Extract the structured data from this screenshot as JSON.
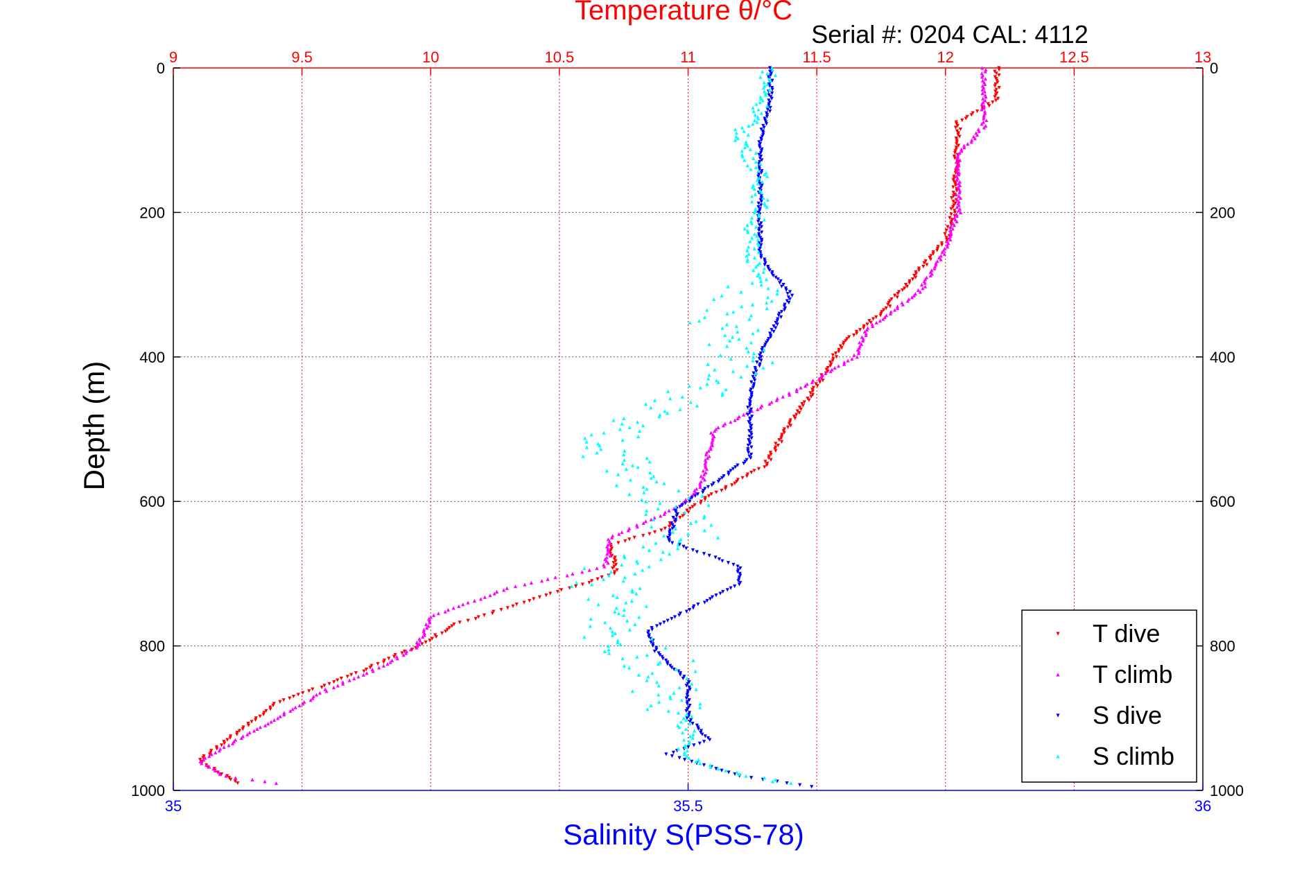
{
  "chart_data": {
    "type": "scatter",
    "title": "Temperature θ/°C",
    "subtitle": "Serial #: 0204  CAL: 4112",
    "ylabel": "Depth (m)",
    "xlabel_top": "Temperature θ/°C",
    "xlabel_bottom": "Salinity S(PSS-78)",
    "y_reversed": true,
    "ylim": [
      0,
      1000
    ],
    "yticks": [
      0,
      200,
      400,
      600,
      800,
      1000
    ],
    "top_xlim": [
      9,
      13
    ],
    "top_xticks": [
      "9",
      "9.5",
      "10",
      "10.5",
      "11",
      "11.5",
      "12",
      "12.5",
      "13"
    ],
    "bottom_xlim": [
      35,
      36
    ],
    "bottom_xticks": [
      "35",
      "35.5",
      "36"
    ],
    "grid": true,
    "legend_position": "bottom-right",
    "colors": {
      "temperature_axis": "#ff0000",
      "salinity_axis": "#0000ff",
      "grid": "#555555"
    },
    "series": [
      {
        "name": "T dive",
        "axis": "temperature",
        "color": "#ff0000",
        "marker": "triangle-down",
        "points": [
          [
            12.2,
            0
          ],
          [
            12.2,
            45
          ],
          [
            12.05,
            75
          ],
          [
            12.03,
            200
          ],
          [
            12.0,
            240
          ],
          [
            11.85,
            300
          ],
          [
            11.75,
            340
          ],
          [
            11.6,
            380
          ],
          [
            11.52,
            430
          ],
          [
            11.4,
            490
          ],
          [
            11.3,
            550
          ],
          [
            11.05,
            600
          ],
          [
            10.9,
            640
          ],
          [
            10.7,
            660
          ],
          [
            10.72,
            700
          ],
          [
            10.45,
            730
          ],
          [
            10.1,
            770
          ],
          [
            9.95,
            800
          ],
          [
            9.7,
            840
          ],
          [
            9.4,
            880
          ],
          [
            9.25,
            920
          ],
          [
            9.1,
            960
          ],
          [
            9.25,
            990
          ]
        ]
      },
      {
        "name": "T climb",
        "axis": "temperature",
        "color": "#ff00ff",
        "marker": "triangle-up",
        "points": [
          [
            12.15,
            0
          ],
          [
            12.15,
            80
          ],
          [
            12.05,
            120
          ],
          [
            12.05,
            200
          ],
          [
            12.0,
            250
          ],
          [
            11.9,
            310
          ],
          [
            11.7,
            360
          ],
          [
            11.65,
            400
          ],
          [
            11.4,
            450
          ],
          [
            11.1,
            500
          ],
          [
            11.05,
            580
          ],
          [
            10.95,
            610
          ],
          [
            10.7,
            650
          ],
          [
            10.68,
            690
          ],
          [
            10.3,
            720
          ],
          [
            10.0,
            760
          ],
          [
            9.95,
            800
          ],
          [
            9.8,
            830
          ],
          [
            9.6,
            860
          ],
          [
            9.4,
            900
          ],
          [
            9.2,
            940
          ],
          [
            9.1,
            960
          ],
          [
            9.2,
            980
          ],
          [
            9.4,
            990
          ]
        ]
      },
      {
        "name": "S dive",
        "axis": "salinity",
        "color": "#0000ff",
        "marker": "triangle-down",
        "points": [
          [
            35.58,
            0
          ],
          [
            35.58,
            50
          ],
          [
            35.57,
            100
          ],
          [
            35.57,
            200
          ],
          [
            35.57,
            260
          ],
          [
            35.58,
            280
          ],
          [
            35.6,
            315
          ],
          [
            35.59,
            340
          ],
          [
            35.57,
            400
          ],
          [
            35.56,
            450
          ],
          [
            35.56,
            500
          ],
          [
            35.56,
            540
          ],
          [
            35.52,
            580
          ],
          [
            35.49,
            610
          ],
          [
            35.48,
            655
          ],
          [
            35.55,
            690
          ],
          [
            35.55,
            715
          ],
          [
            35.5,
            750
          ],
          [
            35.46,
            780
          ],
          [
            35.47,
            810
          ],
          [
            35.5,
            850
          ],
          [
            35.5,
            900
          ],
          [
            35.52,
            930
          ],
          [
            35.48,
            950
          ],
          [
            35.55,
            980
          ],
          [
            35.62,
            995
          ]
        ]
      },
      {
        "name": "S climb",
        "axis": "salinity",
        "color": "#00ffff",
        "marker": "triangle-up",
        "points": [
          [
            35.58,
            0
          ],
          [
            35.57,
            60
          ],
          [
            35.55,
            90
          ],
          [
            35.57,
            150
          ],
          [
            35.57,
            200
          ],
          [
            35.56,
            230
          ],
          [
            35.57,
            300
          ],
          [
            35.53,
            350
          ],
          [
            35.55,
            380
          ],
          [
            35.55,
            430
          ],
          [
            35.47,
            470
          ],
          [
            35.42,
            500
          ],
          [
            35.44,
            560
          ],
          [
            35.49,
            600
          ],
          [
            35.5,
            650
          ],
          [
            35.44,
            680
          ],
          [
            35.42,
            720
          ],
          [
            35.44,
            770
          ],
          [
            35.43,
            790
          ],
          [
            35.47,
            820
          ],
          [
            35.48,
            870
          ],
          [
            35.5,
            920
          ],
          [
            35.49,
            950
          ],
          [
            35.54,
            975
          ],
          [
            35.6,
            990
          ]
        ]
      }
    ]
  }
}
